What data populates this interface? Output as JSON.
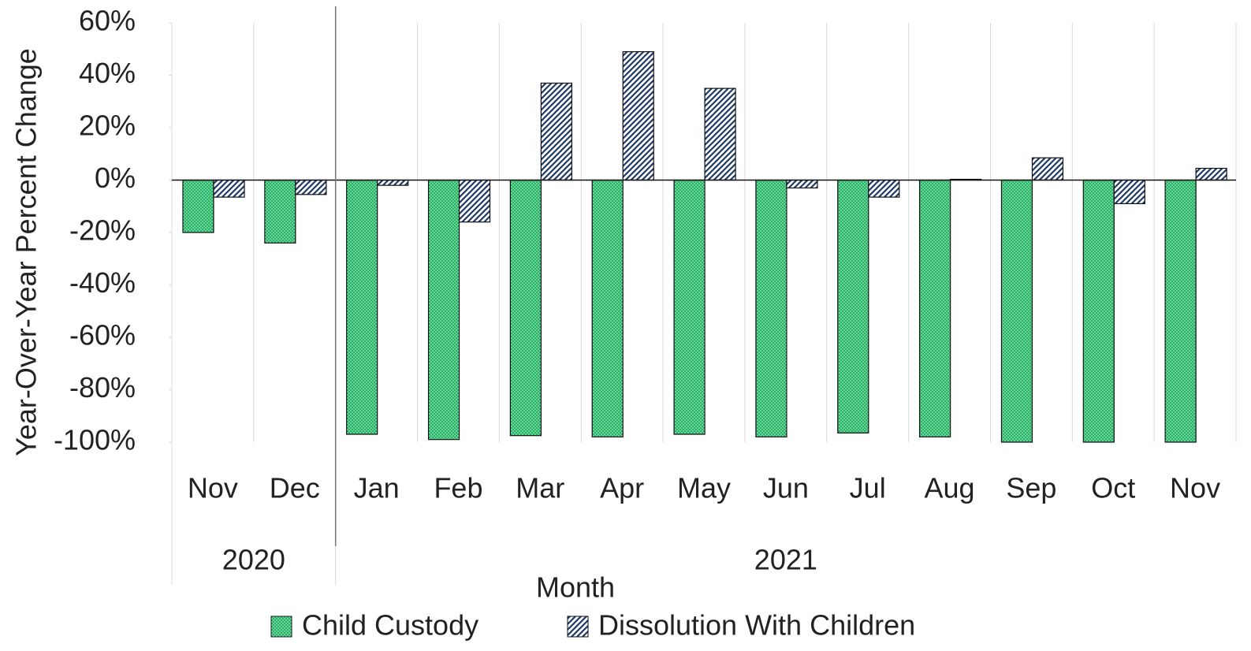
{
  "chart_data": {
    "type": "bar",
    "y_label": "Year-Over-Year Percent Change",
    "x_label": "Month",
    "groups": [
      {
        "name": "2020",
        "categories": [
          "Nov",
          "Dec"
        ]
      },
      {
        "name": "2021",
        "categories": [
          "Jan",
          "Feb",
          "Mar",
          "Apr",
          "May",
          "Jun",
          "Jul",
          "Aug",
          "Sep",
          "Oct",
          "Nov"
        ]
      }
    ],
    "series": [
      {
        "name": "Child Custody",
        "color": "#22b564",
        "pattern": "dots",
        "values": [
          -20,
          -24,
          -97,
          -99,
          -97.5,
          -98,
          -97,
          -98,
          -96.5,
          -98,
          -100,
          -100,
          -100
        ]
      },
      {
        "name": "Dissolution With Children",
        "color": "#1f3864",
        "pattern": "hatch",
        "values": [
          -6.5,
          -5.5,
          -2,
          -16,
          37,
          49,
          35,
          -3,
          -6.5,
          0.3,
          8.5,
          -9,
          4.5
        ]
      }
    ],
    "ylim": [
      -100,
      60
    ],
    "yticks": [
      {
        "value": 60,
        "label": "60%"
      },
      {
        "value": 40,
        "label": "40%"
      },
      {
        "value": 20,
        "label": "20%"
      },
      {
        "value": 0,
        "label": "0%"
      },
      {
        "value": -20,
        "label": "-20%"
      },
      {
        "value": -40,
        "label": "-40%"
      },
      {
        "value": -60,
        "label": "-60%"
      },
      {
        "value": -80,
        "label": "-80%"
      },
      {
        "value": -100,
        "label": "-100%"
      }
    ],
    "grid": true,
    "legend": "bottom"
  }
}
